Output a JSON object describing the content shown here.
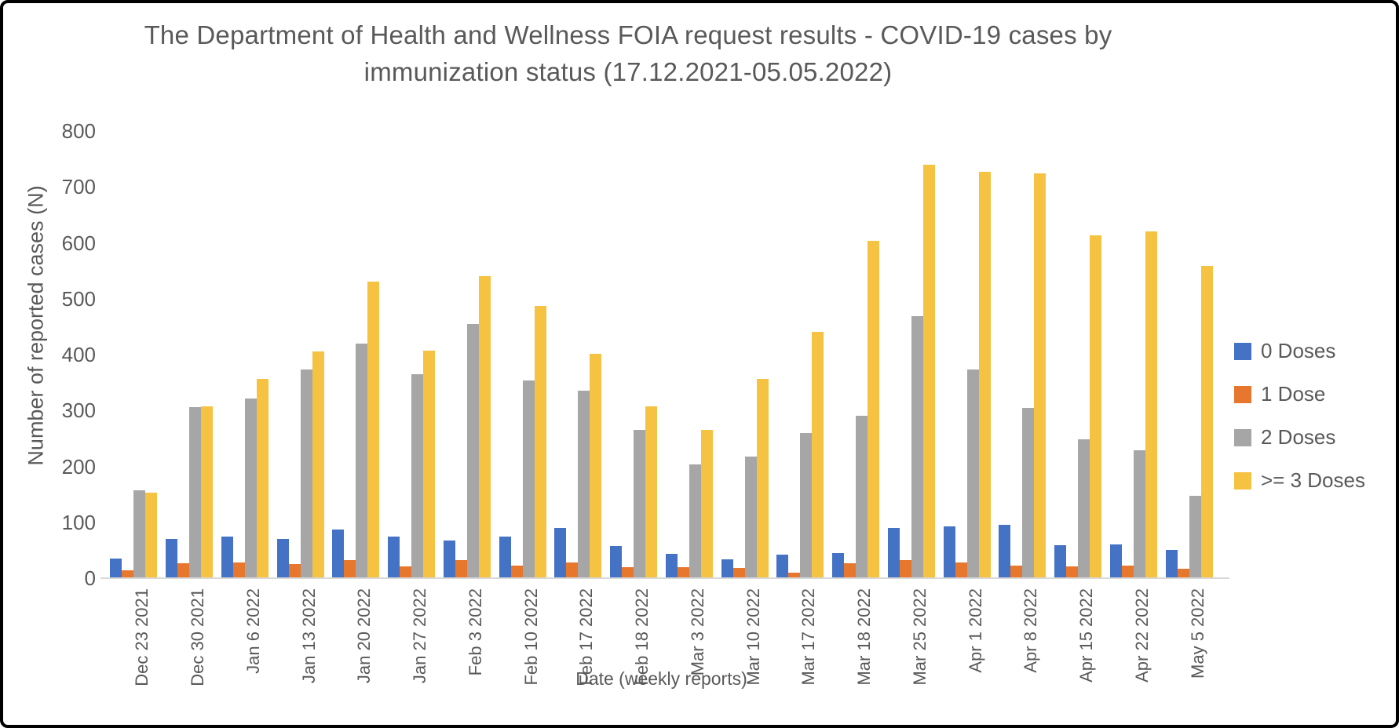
{
  "chart_data": {
    "type": "bar",
    "title": "The Department of Health and Wellness FOIA request results - COVID-19 cases by immunization status (17.12.2021-05.05.2022)",
    "xlabel": "Date (weekly reports)",
    "ylabel": "Number of reported cases (N)",
    "ylim": [
      0,
      800
    ],
    "ytick_step": 100,
    "grid": false,
    "legend_position": "right",
    "background_color": "#ffffff",
    "axis_line_color": "#d9d9d9",
    "text_color": "#595959",
    "categories": [
      "Dec 23 2021",
      "Dec 30 2021",
      "Jan 6 2022",
      "Jan 13 2022",
      "Jan 20 2022",
      "Jan 27 2022",
      "Feb 3 2022",
      "Feb 10 2022",
      "Feb 17 2022",
      "Feb 18 2022",
      "Mar 3 2022",
      "Mar 10 2022",
      "Mar 17 2022",
      "Mar 18 2022",
      "Mar 25 2022",
      "Apr 1 2022",
      "Apr 8 2022",
      "Apr 15 2022",
      "Apr 22 2022",
      "May 5 2022"
    ],
    "series": [
      {
        "name": "0 Doses",
        "color": "#4472C4",
        "values": [
          35,
          70,
          75,
          70,
          87,
          75,
          67,
          75,
          90,
          57,
          43,
          34,
          42,
          45,
          90,
          93,
          95,
          59,
          60,
          51
        ]
      },
      {
        "name": "1 Dose",
        "color": "#E8772E",
        "values": [
          14,
          26,
          28,
          25,
          33,
          21,
          33,
          23,
          28,
          19,
          20,
          18,
          10,
          26,
          33,
          28,
          23,
          21,
          22,
          17
        ]
      },
      {
        "name": "2 Doses",
        "color": "#A6A6A6",
        "values": [
          157,
          306,
          322,
          373,
          420,
          365,
          455,
          354,
          336,
          265,
          203,
          217,
          259,
          291,
          469,
          374,
          305,
          248,
          229,
          147
        ]
      },
      {
        "name": ">= 3 Doses",
        "color": "#F5C242",
        "values": [
          153,
          308,
          357,
          405,
          530,
          407,
          541,
          487,
          402,
          307,
          265,
          357,
          441,
          603,
          739,
          727,
          724,
          614,
          620,
          558
        ]
      }
    ]
  }
}
